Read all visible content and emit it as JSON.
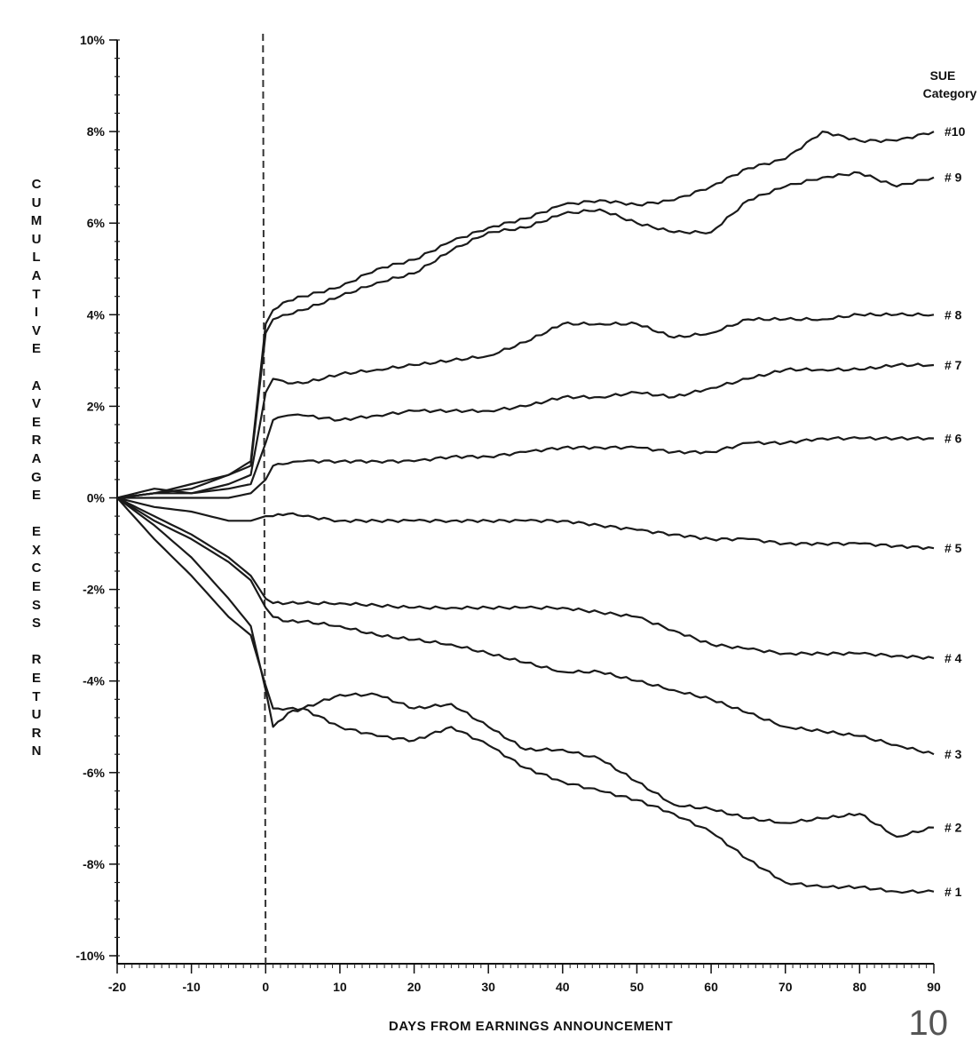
{
  "chart_data": {
    "type": "line",
    "title": "",
    "xlabel": "DAYS FROM EARNINGS ANNOUNCEMENT",
    "ylabel": "CUMULATIVE AVERAGE EXCESS RETURN",
    "xlim": [
      -20,
      90
    ],
    "ylim": [
      -10,
      10
    ],
    "x_ticks": [
      -20,
      -10,
      0,
      10,
      20,
      30,
      40,
      50,
      60,
      70,
      80,
      90
    ],
    "y_ticks": [
      "10%",
      "8%",
      "6%",
      "4%",
      "2%",
      "0%",
      "-2%",
      "-4%",
      "-6%",
      "-8%",
      "-10%"
    ],
    "grid": false,
    "reference_line": {
      "x": 0,
      "style": "dashed"
    },
    "legend": {
      "title": "SUE Category",
      "position": "right, at line ends"
    },
    "x": [
      -20,
      -15,
      -10,
      -5,
      -2,
      0,
      1,
      3,
      5,
      10,
      15,
      20,
      25,
      30,
      35,
      40,
      45,
      50,
      55,
      60,
      65,
      70,
      75,
      80,
      85,
      90
    ],
    "series": [
      {
        "name": "#10",
        "values": [
          0,
          0.1,
          0.2,
          0.5,
          0.8,
          3.8,
          4.1,
          4.3,
          4.4,
          4.6,
          5.0,
          5.2,
          5.6,
          5.9,
          6.1,
          6.4,
          6.5,
          6.4,
          6.5,
          6.8,
          7.2,
          7.4,
          8.0,
          7.8,
          7.8,
          8.0
        ]
      },
      {
        "name": "#9",
        "values": [
          0,
          0.1,
          0.3,
          0.5,
          0.7,
          3.6,
          3.9,
          4.0,
          4.1,
          4.4,
          4.7,
          4.9,
          5.4,
          5.8,
          5.9,
          6.2,
          6.3,
          6.0,
          5.8,
          5.8,
          6.5,
          6.8,
          7.0,
          7.1,
          6.8,
          7.0
        ]
      },
      {
        "name": "#8",
        "values": [
          0,
          0.2,
          0.1,
          0.3,
          0.5,
          2.3,
          2.6,
          2.5,
          2.5,
          2.7,
          2.8,
          2.9,
          3.0,
          3.1,
          3.4,
          3.8,
          3.8,
          3.8,
          3.5,
          3.6,
          3.9,
          3.9,
          3.9,
          4.0,
          4.0,
          4.0
        ]
      },
      {
        "name": "#7",
        "values": [
          0,
          0.1,
          0.1,
          0.2,
          0.3,
          1.2,
          1.7,
          1.8,
          1.8,
          1.7,
          1.8,
          1.9,
          1.9,
          1.9,
          2.0,
          2.2,
          2.2,
          2.3,
          2.2,
          2.4,
          2.6,
          2.8,
          2.8,
          2.8,
          2.9,
          2.9
        ]
      },
      {
        "name": "#6",
        "values": [
          0,
          0.0,
          0.0,
          0.0,
          0.1,
          0.4,
          0.7,
          0.75,
          0.8,
          0.8,
          0.8,
          0.8,
          0.9,
          0.9,
          1.0,
          1.1,
          1.1,
          1.1,
          1.0,
          1.0,
          1.2,
          1.2,
          1.3,
          1.3,
          1.3,
          1.3
        ]
      },
      {
        "name": "#5",
        "values": [
          0,
          -0.2,
          -0.3,
          -0.5,
          -0.5,
          -0.4,
          -0.4,
          -0.35,
          -0.4,
          -0.5,
          -0.5,
          -0.5,
          -0.5,
          -0.5,
          -0.5,
          -0.5,
          -0.6,
          -0.7,
          -0.8,
          -0.9,
          -0.9,
          -1.0,
          -1.0,
          -1.0,
          -1.05,
          -1.1
        ]
      },
      {
        "name": "#4",
        "values": [
          0,
          -0.4,
          -0.8,
          -1.3,
          -1.7,
          -2.2,
          -2.3,
          -2.3,
          -2.3,
          -2.3,
          -2.35,
          -2.4,
          -2.4,
          -2.4,
          -2.4,
          -2.4,
          -2.5,
          -2.6,
          -2.9,
          -3.2,
          -3.3,
          -3.4,
          -3.4,
          -3.4,
          -3.45,
          -3.5
        ]
      },
      {
        "name": "#3",
        "values": [
          0,
          -0.5,
          -0.9,
          -1.4,
          -1.8,
          -2.4,
          -2.6,
          -2.7,
          -2.7,
          -2.8,
          -3.0,
          -3.1,
          -3.2,
          -3.4,
          -3.6,
          -3.8,
          -3.8,
          -4.0,
          -4.2,
          -4.4,
          -4.7,
          -5.0,
          -5.1,
          -5.2,
          -5.4,
          -5.6
        ]
      },
      {
        "name": "#2",
        "values": [
          0,
          -0.6,
          -1.3,
          -2.2,
          -2.8,
          -4.2,
          -5.0,
          -4.7,
          -4.6,
          -4.3,
          -4.3,
          -4.6,
          -4.5,
          -5.0,
          -5.5,
          -5.5,
          -5.7,
          -6.2,
          -6.7,
          -6.8,
          -7.0,
          -7.1,
          -7.0,
          -6.9,
          -7.4,
          -7.2
        ]
      },
      {
        "name": "#1",
        "values": [
          0,
          -0.9,
          -1.7,
          -2.6,
          -3.0,
          -4.1,
          -4.6,
          -4.6,
          -4.6,
          -5.0,
          -5.2,
          -5.3,
          -5.0,
          -5.4,
          -5.9,
          -6.2,
          -6.4,
          -6.6,
          -6.9,
          -7.3,
          -7.9,
          -8.4,
          -8.5,
          -8.5,
          -8.6,
          -8.6
        ]
      }
    ]
  },
  "axes": {
    "xlabel": "DAYS FROM EARNINGS ANNOUNCEMENT",
    "ylabel_letters": [
      "C",
      "U",
      "M",
      "U",
      "L",
      "A",
      "T",
      "I",
      "V",
      "E",
      " ",
      "A",
      "V",
      "E",
      "R",
      "A",
      "G",
      "E",
      " ",
      "E",
      "X",
      "C",
      "E",
      "S",
      "S",
      " ",
      "R",
      "E",
      "T",
      "U",
      "R",
      "N"
    ]
  },
  "legend": {
    "title_line1": "SUE",
    "title_line2": "Category",
    "labels": [
      "#10",
      "# 9",
      "# 8",
      "# 7",
      "# 6",
      "# 5",
      "# 4",
      "# 3",
      "# 2",
      "# 1"
    ]
  },
  "page": {
    "number": "10"
  },
  "colors": {
    "line": "#1a1a1a",
    "axis": "#111111",
    "page_number": "#555555"
  }
}
